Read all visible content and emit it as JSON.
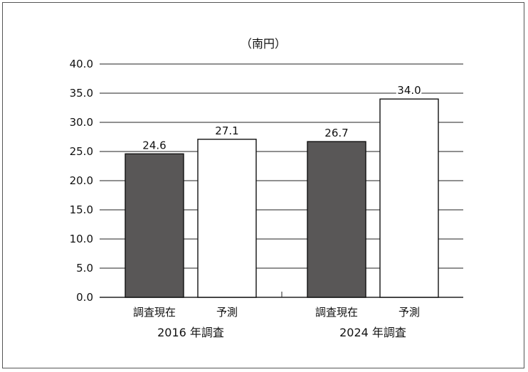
{
  "chart_data": {
    "type": "bar",
    "unit_label": "（南円）",
    "ylim": [
      0,
      40
    ],
    "yticks": [
      "0.0",
      "5.0",
      "10.0",
      "15.0",
      "20.0",
      "25.0",
      "30.0",
      "35.0",
      "40.0"
    ],
    "grid": true,
    "groups": [
      {
        "name": "2016 年調査",
        "bars": [
          {
            "category": "調査現在",
            "value": 24.6,
            "label": "24.6",
            "fill": "#595757"
          },
          {
            "category": "予測",
            "value": 27.1,
            "label": "27.1",
            "fill": "#ffffff"
          }
        ]
      },
      {
        "name": "2024 年調査",
        "bars": [
          {
            "category": "調査現在",
            "value": 26.7,
            "label": "26.7",
            "fill": "#595757"
          },
          {
            "category": "予測",
            "value": 34.0,
            "label": "34.0",
            "fill": "#ffffff"
          }
        ]
      }
    ]
  }
}
